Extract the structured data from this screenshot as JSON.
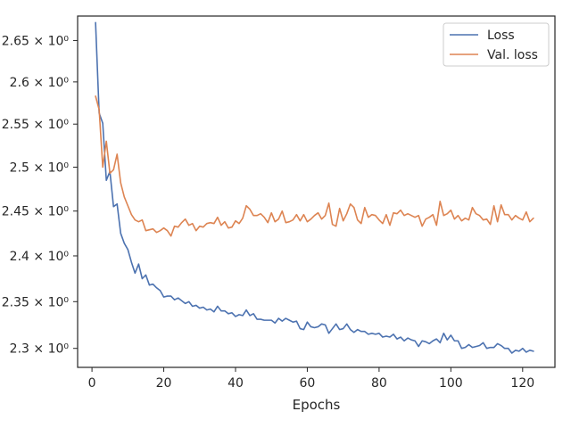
{
  "chart_data": {
    "type": "line",
    "xlabel": "Epochs",
    "ylabel": "",
    "title": "",
    "xlim": [
      -4,
      129
    ],
    "ylim": [
      2.28,
      2.68
    ],
    "yscale": "log",
    "grid": false,
    "legend_position": "top-right",
    "xticks": [
      0,
      20,
      40,
      60,
      80,
      100,
      120
    ],
    "yticks": [
      {
        "value": 2.3,
        "label": "2.3 × 10⁰"
      },
      {
        "value": 2.35,
        "label": "2.35 × 10⁰"
      },
      {
        "value": 2.4,
        "label": "2.4 × 10⁰"
      },
      {
        "value": 2.45,
        "label": "2.45 × 10⁰"
      },
      {
        "value": 2.5,
        "label": "2.5 × 10⁰"
      },
      {
        "value": 2.55,
        "label": "2.55 × 10⁰"
      },
      {
        "value": 2.6,
        "label": "2.6 × 10⁰"
      },
      {
        "value": 2.65,
        "label": "2.65 × 10⁰"
      }
    ],
    "x": [
      1,
      2,
      3,
      4,
      5,
      6,
      7,
      8,
      9,
      10,
      11,
      12,
      13,
      14,
      15,
      16,
      17,
      18,
      19,
      20,
      21,
      22,
      23,
      24,
      25,
      26,
      27,
      28,
      29,
      30,
      31,
      32,
      33,
      34,
      35,
      36,
      37,
      38,
      39,
      40,
      41,
      42,
      43,
      44,
      45,
      46,
      47,
      48,
      49,
      50,
      51,
      52,
      53,
      54,
      55,
      56,
      57,
      58,
      59,
      60,
      61,
      62,
      63,
      64,
      65,
      66,
      67,
      68,
      69,
      70,
      71,
      72,
      73,
      74,
      75,
      76,
      77,
      78,
      79,
      80,
      81,
      82,
      83,
      84,
      85,
      86,
      87,
      88,
      89,
      90,
      91,
      92,
      93,
      94,
      95,
      96,
      97,
      98,
      99,
      100,
      101,
      102,
      103,
      104,
      105,
      106,
      107,
      108,
      109,
      110,
      111,
      112,
      113,
      114,
      115,
      116,
      117,
      118,
      119,
      120,
      121,
      122,
      123
    ],
    "series": [
      {
        "name": "Loss",
        "color": "#4c72b0",
        "values": [
          2.672,
          2.563,
          2.551,
          2.485,
          2.495,
          2.455,
          2.458,
          2.425,
          2.414,
          2.407,
          2.393,
          2.381,
          2.391,
          2.375,
          2.379,
          2.368,
          2.369,
          2.365,
          2.362,
          2.355,
          2.356,
          2.356,
          2.352,
          2.354,
          2.351,
          2.348,
          2.35,
          2.345,
          2.346,
          2.343,
          2.344,
          2.341,
          2.342,
          2.339,
          2.345,
          2.34,
          2.34,
          2.337,
          2.338,
          2.334,
          2.336,
          2.335,
          2.341,
          2.335,
          2.337,
          2.331,
          2.331,
          2.33,
          2.33,
          2.33,
          2.327,
          2.332,
          2.329,
          2.332,
          2.33,
          2.328,
          2.329,
          2.321,
          2.32,
          2.328,
          2.323,
          2.322,
          2.323,
          2.326,
          2.325,
          2.316,
          2.321,
          2.326,
          2.32,
          2.321,
          2.326,
          2.32,
          2.317,
          2.32,
          2.318,
          2.318,
          2.315,
          2.316,
          2.315,
          2.316,
          2.312,
          2.313,
          2.312,
          2.315,
          2.31,
          2.312,
          2.308,
          2.311,
          2.309,
          2.308,
          2.302,
          2.308,
          2.307,
          2.305,
          2.308,
          2.31,
          2.306,
          2.316,
          2.309,
          2.314,
          2.308,
          2.308,
          2.3,
          2.301,
          2.304,
          2.301,
          2.302,
          2.303,
          2.306,
          2.3,
          2.301,
          2.301,
          2.305,
          2.303,
          2.3,
          2.3,
          2.295,
          2.298,
          2.297,
          2.3,
          2.296,
          2.298,
          2.297
        ]
      },
      {
        "name": "Val. loss",
        "color": "#dd8452",
        "values": [
          2.583,
          2.567,
          2.5,
          2.53,
          2.493,
          2.497,
          2.515,
          2.482,
          2.466,
          2.456,
          2.446,
          2.44,
          2.438,
          2.44,
          2.428,
          2.429,
          2.43,
          2.426,
          2.428,
          2.431,
          2.428,
          2.422,
          2.433,
          2.432,
          2.437,
          2.441,
          2.434,
          2.436,
          2.428,
          2.433,
          2.432,
          2.436,
          2.437,
          2.436,
          2.443,
          2.434,
          2.438,
          2.431,
          2.432,
          2.439,
          2.436,
          2.442,
          2.456,
          2.452,
          2.445,
          2.445,
          2.447,
          2.443,
          2.437,
          2.448,
          2.438,
          2.441,
          2.45,
          2.437,
          2.438,
          2.44,
          2.446,
          2.439,
          2.446,
          2.438,
          2.441,
          2.445,
          2.448,
          2.441,
          2.445,
          2.459,
          2.435,
          2.433,
          2.453,
          2.439,
          2.447,
          2.458,
          2.454,
          2.44,
          2.436,
          2.454,
          2.443,
          2.446,
          2.445,
          2.44,
          2.436,
          2.446,
          2.434,
          2.448,
          2.447,
          2.451,
          2.445,
          2.447,
          2.445,
          2.443,
          2.445,
          2.433,
          2.441,
          2.443,
          2.446,
          2.434,
          2.461,
          2.445,
          2.447,
          2.451,
          2.441,
          2.445,
          2.439,
          2.442,
          2.44,
          2.454,
          2.447,
          2.445,
          2.44,
          2.441,
          2.435,
          2.456,
          2.438,
          2.457,
          2.446,
          2.446,
          2.44,
          2.445,
          2.442,
          2.44,
          2.449,
          2.438,
          2.442
        ]
      }
    ]
  }
}
